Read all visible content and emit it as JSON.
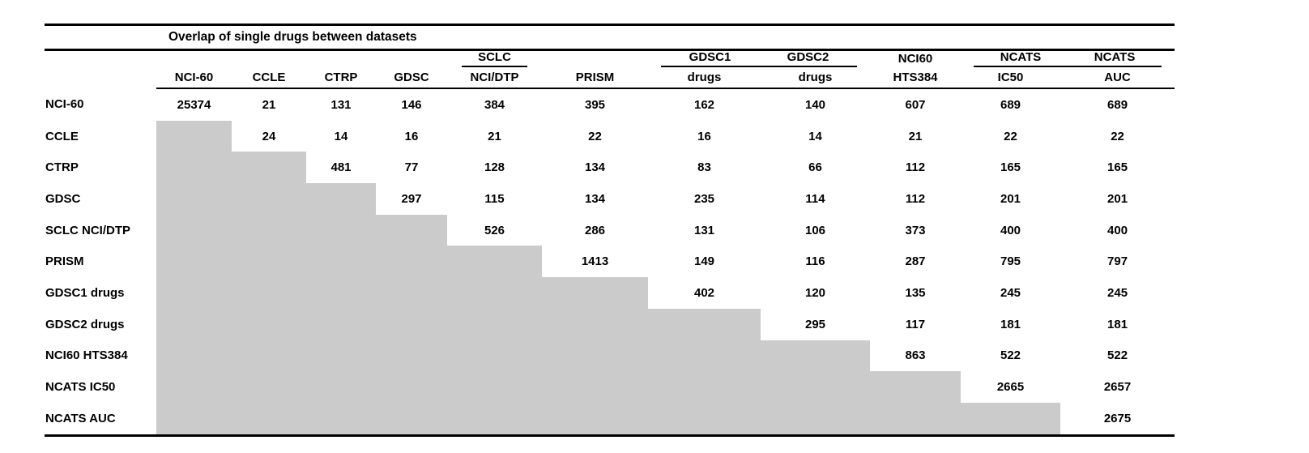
{
  "title": "Overlap of single drugs between datasets",
  "colors": {
    "shaded_cell": "#cbcbcb",
    "rule": "#000000",
    "text": "#000000",
    "background": "#ffffff"
  },
  "table": {
    "header_groups": [
      {
        "span": 5,
        "labels": [],
        "underline": false
      },
      {
        "span": 1,
        "labels": [
          "SCLC"
        ],
        "underline": true
      },
      {
        "span": 1,
        "labels": [],
        "underline": false
      },
      {
        "span": 2,
        "labels": [
          "GDSC1",
          "GDSC2"
        ],
        "underline": true
      },
      {
        "span": 1,
        "labels": [
          "NCI60"
        ],
        "underline": false
      },
      {
        "span": 2,
        "labels": [
          "NCATS",
          "NCATS"
        ],
        "underline": true
      }
    ],
    "header": [
      "",
      "NCI-60",
      "CCLE",
      "CTRP",
      "GDSC",
      "NCI/DTP",
      "PRISM",
      "drugs",
      "drugs",
      "HTS384",
      "IC50",
      "AUC"
    ],
    "rows": [
      {
        "label": "NCI-60",
        "values": [
          25374,
          21,
          131,
          146,
          384,
          395,
          162,
          140,
          607,
          689,
          689
        ]
      },
      {
        "label": "CCLE",
        "values": [
          null,
          24,
          14,
          16,
          21,
          22,
          16,
          14,
          21,
          22,
          22
        ]
      },
      {
        "label": "CTRP",
        "values": [
          null,
          null,
          481,
          77,
          128,
          134,
          83,
          66,
          112,
          165,
          165
        ]
      },
      {
        "label": "GDSC",
        "values": [
          null,
          null,
          null,
          297,
          115,
          134,
          235,
          114,
          112,
          201,
          201
        ]
      },
      {
        "label": "SCLC NCI/DTP",
        "values": [
          null,
          null,
          null,
          null,
          526,
          286,
          131,
          106,
          373,
          400,
          400
        ]
      },
      {
        "label": "PRISM",
        "values": [
          null,
          null,
          null,
          null,
          null,
          1413,
          149,
          116,
          287,
          795,
          797
        ]
      },
      {
        "label": "GDSC1 drugs",
        "values": [
          null,
          null,
          null,
          null,
          null,
          null,
          402,
          120,
          135,
          245,
          245
        ]
      },
      {
        "label": "GDSC2 drugs",
        "values": [
          null,
          null,
          null,
          null,
          null,
          null,
          null,
          295,
          117,
          181,
          181
        ]
      },
      {
        "label": "NCI60 HTS384",
        "values": [
          null,
          null,
          null,
          null,
          null,
          null,
          null,
          null,
          863,
          522,
          522
        ]
      },
      {
        "label": "NCATS IC50",
        "values": [
          null,
          null,
          null,
          null,
          null,
          null,
          null,
          null,
          null,
          2665,
          2657
        ]
      },
      {
        "label": "NCATS AUC",
        "values": [
          null,
          null,
          null,
          null,
          null,
          null,
          null,
          null,
          null,
          null,
          2675
        ]
      }
    ]
  }
}
